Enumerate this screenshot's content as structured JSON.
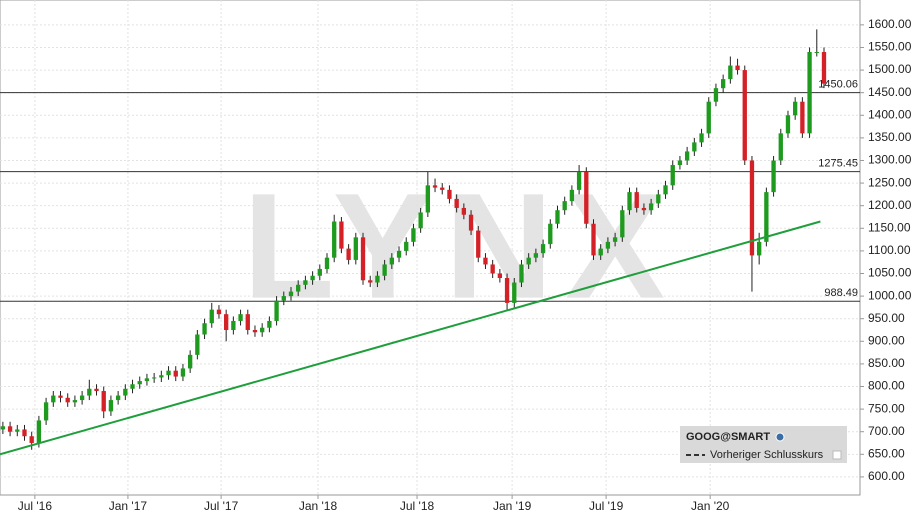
{
  "chart_data": {
    "type": "candlestick",
    "watermark": "LYNX",
    "legend": {
      "title": "GOOG@SMART",
      "entry": "Vorheriger Schlusskurs"
    },
    "up_color": "#1e9a1e",
    "down_color": "#d42027",
    "ylim": [
      560,
      1655
    ],
    "xlim": [
      -0.4,
      119
    ],
    "yticks": [
      {
        "value": 600,
        "label": "600.00"
      },
      {
        "value": 650,
        "label": "650.00"
      },
      {
        "value": 700,
        "label": "700.00"
      },
      {
        "value": 750,
        "label": "750.00"
      },
      {
        "value": 800,
        "label": "800.00"
      },
      {
        "value": 850,
        "label": "850.00"
      },
      {
        "value": 900,
        "label": "900.00"
      },
      {
        "value": 950,
        "label": "950.00"
      },
      {
        "value": 1000,
        "label": "1000.00"
      },
      {
        "value": 1050,
        "label": "1050.00"
      },
      {
        "value": 1100,
        "label": "1100.00"
      },
      {
        "value": 1150,
        "label": "1150.00"
      },
      {
        "value": 1200,
        "label": "1200.00"
      },
      {
        "value": 1250,
        "label": "1250.00"
      },
      {
        "value": 1300,
        "label": "1300.00"
      },
      {
        "value": 1350,
        "label": "1350.00"
      },
      {
        "value": 1400,
        "label": "1400.00"
      },
      {
        "value": 1450,
        "label": "1450.00"
      },
      {
        "value": 1500,
        "label": "1500.00"
      },
      {
        "value": 1550,
        "label": "1550.00"
      },
      {
        "value": 1600,
        "label": "1600.00"
      }
    ],
    "xticks": [
      {
        "value": 4.44,
        "label": "Jul '16"
      },
      {
        "value": 17.36,
        "label": "Jan '17"
      },
      {
        "value": 30.3,
        "label": "Jul '17"
      },
      {
        "value": 43.75,
        "label": "Jan '18"
      },
      {
        "value": 57.5,
        "label": "Jul '18"
      },
      {
        "value": 70.7,
        "label": "Jan '19"
      },
      {
        "value": 83.75,
        "label": "Jul '19"
      },
      {
        "value": 98.2,
        "label": "Jan '20"
      }
    ],
    "hlines": [
      1450.06,
      1275.45,
      988.49
    ],
    "trendline": {
      "x": [
        -0.4,
        113.5
      ],
      "y": [
        650,
        1165
      ],
      "color": "#1f9e3c"
    },
    "x": [
      0,
      1,
      2,
      3,
      4,
      5,
      6,
      7,
      8,
      9,
      10,
      11,
      12,
      13,
      14,
      15,
      16,
      17,
      18,
      19,
      20,
      21,
      22,
      23,
      24,
      25,
      26,
      27,
      28,
      29,
      30,
      31,
      32,
      33,
      34,
      35,
      36,
      37,
      38,
      39,
      40,
      41,
      42,
      43,
      44,
      45,
      46,
      47,
      48,
      49,
      50,
      51,
      52,
      53,
      54,
      55,
      56,
      57,
      58,
      59,
      60,
      61,
      62,
      63,
      64,
      65,
      66,
      67,
      68,
      69,
      70,
      71,
      72,
      73,
      74,
      75,
      76,
      77,
      78,
      79,
      80,
      81,
      82,
      83,
      84,
      85,
      86,
      87,
      88,
      89,
      90,
      91,
      92,
      93,
      94,
      95,
      96,
      97,
      98,
      99,
      100,
      101,
      102,
      103,
      104,
      105,
      106,
      107,
      108,
      109,
      110,
      111,
      112,
      113,
      114
    ],
    "open": [
      705,
      712,
      700,
      705,
      690,
      675,
      725,
      765,
      780,
      775,
      765,
      770,
      780,
      795,
      790,
      745,
      770,
      780,
      795,
      805,
      812,
      818,
      820,
      825,
      835,
      822,
      840,
      870,
      915,
      940,
      970,
      960,
      925,
      945,
      960,
      925,
      920,
      930,
      945,
      990,
      1000,
      1010,
      1025,
      1035,
      1045,
      1060,
      1085,
      1165,
      1105,
      1080,
      1130,
      1035,
      1030,
      1045,
      1070,
      1085,
      1100,
      1120,
      1150,
      1185,
      1245,
      1240,
      1235,
      1215,
      1195,
      1180,
      1145,
      1085,
      1070,
      1050,
      1040,
      985,
      1030,
      1070,
      1085,
      1095,
      1115,
      1160,
      1190,
      1210,
      1235,
      1275,
      1160,
      1090,
      1105,
      1120,
      1130,
      1190,
      1230,
      1195,
      1190,
      1205,
      1225,
      1245,
      1290,
      1300,
      1320,
      1340,
      1360,
      1430,
      1460,
      1480,
      1510,
      1500,
      1300,
      1090,
      1120,
      1230,
      1300,
      1360,
      1400,
      1430,
      1360,
      1540,
      1540
    ],
    "high": [
      722,
      722,
      715,
      715,
      700,
      735,
      775,
      790,
      790,
      785,
      780,
      790,
      815,
      805,
      800,
      780,
      790,
      805,
      815,
      822,
      828,
      830,
      835,
      845,
      845,
      850,
      880,
      925,
      950,
      985,
      980,
      970,
      955,
      970,
      970,
      935,
      940,
      955,
      1000,
      1010,
      1020,
      1035,
      1045,
      1055,
      1070,
      1095,
      1180,
      1175,
      1115,
      1140,
      1140,
      1045,
      1055,
      1080,
      1095,
      1110,
      1130,
      1160,
      1195,
      1275,
      1260,
      1250,
      1245,
      1225,
      1205,
      1190,
      1155,
      1095,
      1080,
      1060,
      1050,
      1040,
      1080,
      1095,
      1105,
      1125,
      1170,
      1200,
      1220,
      1245,
      1290,
      1285,
      1170,
      1115,
      1130,
      1140,
      1200,
      1240,
      1240,
      1205,
      1215,
      1235,
      1255,
      1300,
      1310,
      1330,
      1350,
      1370,
      1440,
      1470,
      1490,
      1530,
      1525,
      1510,
      1310,
      1140,
      1240,
      1310,
      1370,
      1410,
      1440,
      1440,
      1550,
      1590,
      1550
    ],
    "low": [
      695,
      690,
      690,
      680,
      660,
      665,
      715,
      755,
      765,
      755,
      755,
      760,
      770,
      780,
      730,
      735,
      760,
      770,
      785,
      795,
      802,
      808,
      810,
      815,
      812,
      812,
      830,
      860,
      905,
      930,
      950,
      900,
      915,
      935,
      915,
      910,
      910,
      920,
      935,
      980,
      990,
      1000,
      1015,
      1025,
      1035,
      1050,
      1075,
      1095,
      1070,
      1070,
      1025,
      1020,
      1020,
      1035,
      1060,
      1075,
      1090,
      1110,
      1140,
      1175,
      1230,
      1225,
      1205,
      1185,
      1170,
      1135,
      1075,
      1060,
      1040,
      1030,
      970,
      975,
      1020,
      1060,
      1075,
      1085,
      1105,
      1150,
      1180,
      1200,
      1225,
      1150,
      1080,
      1080,
      1095,
      1110,
      1120,
      1180,
      1185,
      1180,
      1180,
      1195,
      1215,
      1235,
      1280,
      1290,
      1310,
      1330,
      1350,
      1420,
      1450,
      1470,
      1490,
      1290,
      1010,
      1070,
      1110,
      1220,
      1290,
      1350,
      1390,
      1350,
      1350,
      1530,
      1460
    ],
    "close": [
      712,
      700,
      705,
      690,
      675,
      725,
      765,
      780,
      775,
      765,
      770,
      780,
      795,
      790,
      745,
      770,
      780,
      795,
      805,
      812,
      818,
      820,
      825,
      835,
      822,
      840,
      870,
      915,
      940,
      970,
      960,
      925,
      945,
      960,
      925,
      920,
      930,
      945,
      990,
      1000,
      1010,
      1025,
      1035,
      1045,
      1060,
      1085,
      1165,
      1105,
      1080,
      1130,
      1035,
      1030,
      1045,
      1070,
      1085,
      1100,
      1120,
      1150,
      1185,
      1245,
      1240,
      1235,
      1215,
      1195,
      1180,
      1145,
      1085,
      1070,
      1050,
      1040,
      985,
      1030,
      1070,
      1085,
      1095,
      1115,
      1160,
      1190,
      1210,
      1235,
      1275,
      1160,
      1090,
      1105,
      1120,
      1130,
      1190,
      1230,
      1195,
      1190,
      1205,
      1225,
      1245,
      1290,
      1300,
      1320,
      1340,
      1360,
      1430,
      1460,
      1480,
      1510,
      1500,
      1300,
      1090,
      1120,
      1230,
      1300,
      1360,
      1400,
      1430,
      1360,
      1540,
      1540,
      1470
    ]
  }
}
